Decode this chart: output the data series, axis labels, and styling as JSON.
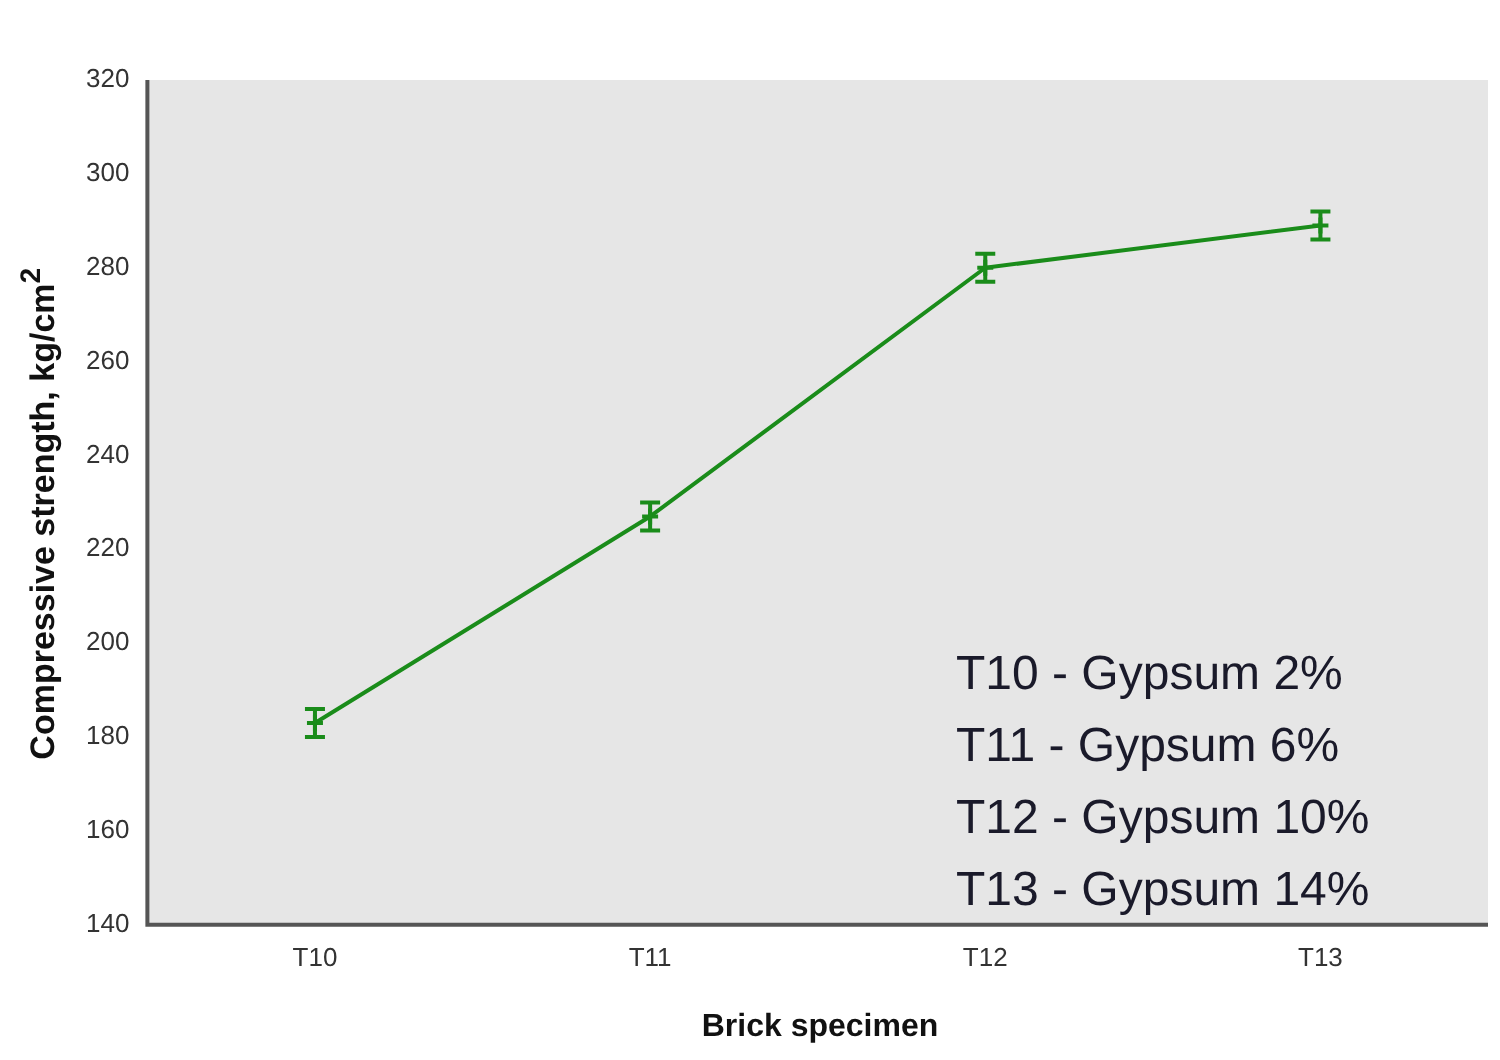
{
  "chart_data": {
    "type": "line",
    "xlabel": "Brick specimen",
    "ylabel": "Compressive strength, kg/cm$^{2}$",
    "categories": [
      "T10",
      "T11",
      "T12",
      "T13"
    ],
    "series": [
      {
        "color": "#1a8c1a",
        "values": [
          183,
          227,
          280,
          289
        ],
        "errors": [
          3,
          3,
          3,
          3
        ]
      }
    ],
    "ylim": [
      140,
      320
    ],
    "yticks": [
      140,
      160,
      180,
      200,
      220,
      240,
      260,
      280,
      300,
      320
    ],
    "grid": false,
    "legend": false,
    "marker": "cross",
    "line_style": "solid",
    "annotations": [
      "T10 - Gypsum 2%",
      "T11 - Gypsum 6%",
      "T12 - Gypsum 10%",
      "T13 - Gypsum 14%"
    ]
  }
}
